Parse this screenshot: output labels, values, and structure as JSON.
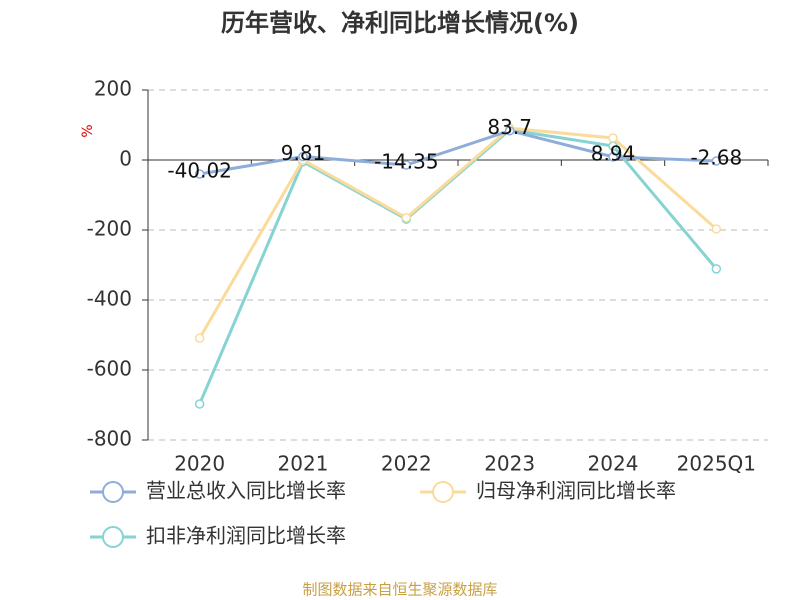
{
  "chart_data": {
    "type": "line",
    "title": "历年营收、净利同比增长情况(%)",
    "y_label": "%",
    "categories": [
      "2020",
      "2021",
      "2022",
      "2023",
      "2024",
      "2025Q1"
    ],
    "series": [
      {
        "name": "营业总收入同比增长率",
        "color": "#8fadd9",
        "values": [
          -40.02,
          9.81,
          -14.35,
          83.7,
          8.94,
          -2.68
        ]
      },
      {
        "name": "归母净利润同比增长率",
        "color": "#fbdb9b",
        "values": [
          -509,
          0,
          -165,
          91,
          63,
          -197
        ]
      },
      {
        "name": "扣非净利润同比增长率",
        "color": "#86d3d3",
        "values": [
          -697,
          -5,
          -169,
          86,
          40,
          -311
        ]
      }
    ],
    "ylim": [
      -800,
      200
    ],
    "yticks": [
      200,
      0,
      -200,
      -400,
      -600,
      -800
    ],
    "grid": true,
    "legend": "bottom",
    "source": "制图数据来自恒生聚源数据库"
  }
}
